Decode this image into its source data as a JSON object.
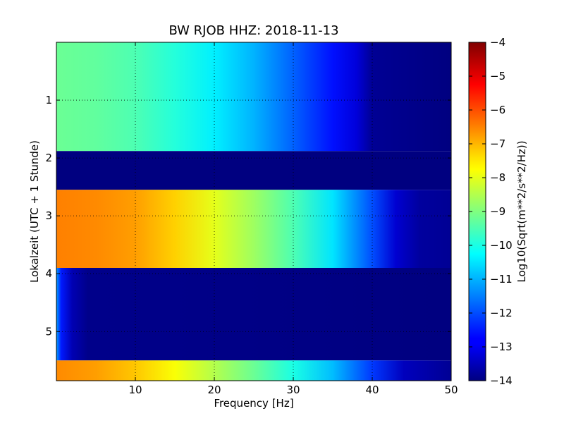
{
  "chart_data": {
    "type": "heatmap",
    "title": "BW RJOB HHZ: 2018-11-13",
    "xlabel": "Frequency [Hz]",
    "ylabel": "Lokalzeit (UTC + 1 Stunde)",
    "xlim": [
      0,
      50
    ],
    "ylim": [
      0,
      5.85
    ],
    "y_inverted": true,
    "x_ticks": [
      10,
      20,
      30,
      40,
      50
    ],
    "x_tick_labels": [
      "10",
      "20",
      "30",
      "40",
      "50"
    ],
    "y_ticks": [
      1,
      2,
      3,
      4,
      5
    ],
    "y_tick_labels": [
      "1",
      "2",
      "3",
      "4",
      "5"
    ],
    "grid": true,
    "colormap": "jet",
    "colorbar": {
      "label": "Log10(Sqrt(m**2/s**2/Hz))",
      "vmin": -14,
      "vmax": -4,
      "ticks": [
        -4,
        -5,
        -6,
        -7,
        -8,
        -9,
        -10,
        -11,
        -12,
        -13,
        -14
      ],
      "tick_labels": [
        "−4",
        "−5",
        "−6",
        "−7",
        "−8",
        "−9",
        "−10",
        "−11",
        "−12",
        "−13",
        "−14"
      ]
    },
    "segments": [
      {
        "t_start": 0.0,
        "t_end": 1.88,
        "profile": [
          [
            0,
            -9.2
          ],
          [
            5,
            -9.3
          ],
          [
            10,
            -9.5
          ],
          [
            15,
            -9.9
          ],
          [
            20,
            -10.4
          ],
          [
            25,
            -11.0
          ],
          [
            30,
            -11.8
          ],
          [
            35,
            -12.6
          ],
          [
            38,
            -13.1
          ],
          [
            40,
            -13.8
          ],
          [
            50,
            -14.0
          ]
        ]
      },
      {
        "t_start": 1.88,
        "t_end": 2.55,
        "profile": [
          [
            0,
            -14.0
          ],
          [
            50,
            -14.0
          ]
        ]
      },
      {
        "t_start": 2.55,
        "t_end": 3.9,
        "profile": [
          [
            0,
            -6.5
          ],
          [
            5,
            -6.6
          ],
          [
            10,
            -6.8
          ],
          [
            15,
            -7.3
          ],
          [
            20,
            -8.0
          ],
          [
            25,
            -8.7
          ],
          [
            30,
            -9.5
          ],
          [
            35,
            -10.5
          ],
          [
            40,
            -12.0
          ],
          [
            43,
            -13.2
          ],
          [
            46,
            -13.7
          ],
          [
            50,
            -13.8
          ]
        ]
      },
      {
        "t_start": 3.9,
        "t_end": 5.5,
        "profile": [
          [
            0,
            -11.2
          ],
          [
            0.6,
            -12.5
          ],
          [
            2,
            -13.5
          ],
          [
            4,
            -13.9
          ],
          [
            50,
            -14.0
          ]
        ]
      },
      {
        "t_start": 5.5,
        "t_end": 5.85,
        "profile": [
          [
            0,
            -6.6
          ],
          [
            5,
            -6.8
          ],
          [
            10,
            -7.2
          ],
          [
            15,
            -7.8
          ],
          [
            20,
            -8.5
          ],
          [
            25,
            -9.2
          ],
          [
            30,
            -10.0
          ],
          [
            35,
            -10.9
          ],
          [
            40,
            -12.2
          ],
          [
            44,
            -13.4
          ],
          [
            50,
            -13.8
          ]
        ]
      }
    ]
  }
}
